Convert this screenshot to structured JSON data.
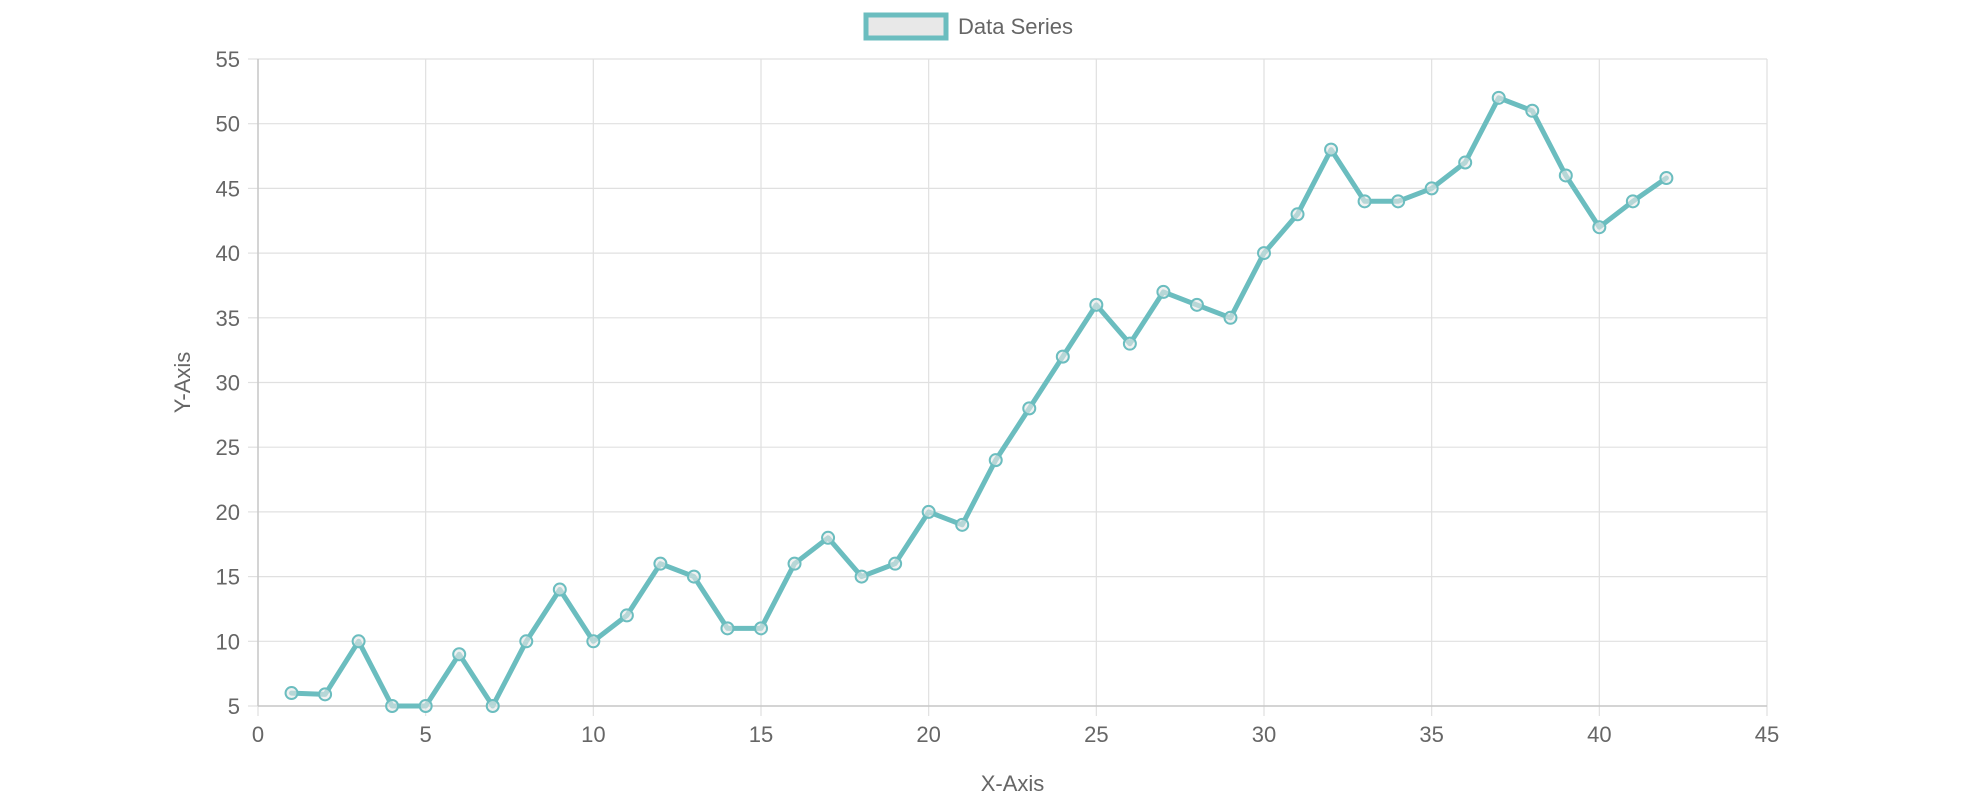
{
  "chart_data": {
    "type": "line",
    "title": "",
    "xlabel": "X-Axis",
    "ylabel": "Y-Axis",
    "xlim": [
      0,
      45
    ],
    "ylim": [
      5,
      55
    ],
    "x_ticks": [
      0,
      5,
      10,
      15,
      20,
      25,
      30,
      35,
      40,
      45
    ],
    "y_ticks": [
      5,
      10,
      15,
      20,
      25,
      30,
      35,
      40,
      45,
      50,
      55
    ],
    "x_tick_labels": [
      "0",
      "5",
      "10",
      "15",
      "20",
      "25",
      "30",
      "35",
      "40",
      "45"
    ],
    "y_tick_labels": [
      "5",
      "10",
      "15",
      "20",
      "25",
      "30",
      "35",
      "40",
      "45",
      "50",
      "55"
    ],
    "grid": true,
    "legend_position": "top-center",
    "series": [
      {
        "name": "Data Series",
        "color": "#6bbdbf",
        "fill_color": "#e8e8e8",
        "x": [
          1,
          2,
          3,
          4,
          5,
          6,
          7,
          8,
          9,
          10,
          11,
          12,
          13,
          14,
          15,
          16,
          17,
          18,
          19,
          20,
          21,
          22,
          23,
          24,
          25,
          26,
          27,
          28,
          29,
          30,
          31,
          32,
          33,
          34,
          35,
          36,
          37,
          38,
          39,
          40,
          41,
          42
        ],
        "y": [
          6,
          5.9,
          10,
          5,
          5,
          9,
          5,
          10,
          14,
          10,
          12,
          16,
          15,
          11,
          11,
          16,
          18,
          15,
          16,
          20,
          19,
          24,
          28,
          32,
          36,
          33,
          37,
          36,
          35,
          40,
          43,
          48,
          44,
          44,
          45,
          47,
          52,
          51,
          46,
          42,
          44,
          45.8
        ]
      }
    ]
  },
  "colors": {
    "grid": "#e0e0e0",
    "axis": "#c8c8c8",
    "text": "#666666"
  }
}
